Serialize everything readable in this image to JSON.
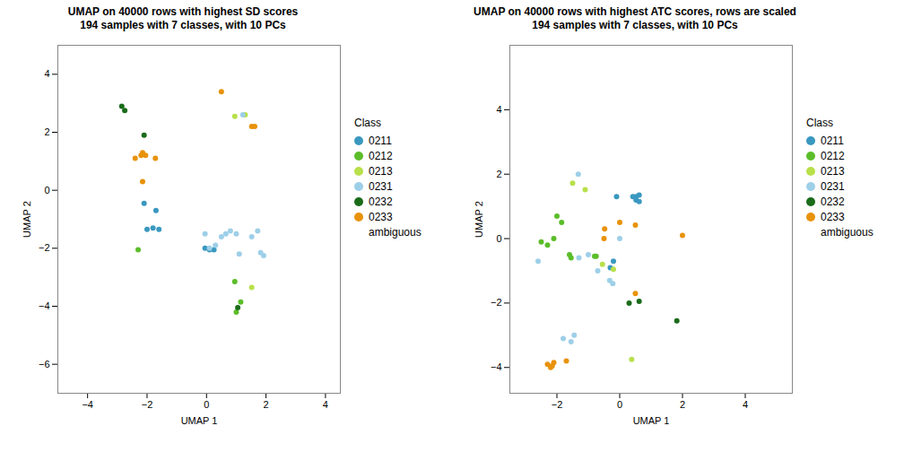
{
  "chart_data": [
    {
      "type": "scatter",
      "title": "UMAP on 40000 rows with highest SD scores\n194 samples with 7 classes, with 10 PCs",
      "xlabel": "UMAP 1",
      "ylabel": "UMAP 2",
      "xlim": [
        -5.0,
        4.5
      ],
      "ylim": [
        -7.0,
        5.0
      ],
      "xticks": [
        -4,
        -2,
        0,
        2,
        4
      ],
      "yticks": [
        -6,
        -4,
        -2,
        0,
        2,
        4
      ],
      "grid": false,
      "legend": "right",
      "legend_title": "Class",
      "series": [
        {
          "name": "0211",
          "color": "#3A98C0",
          "x": [
            -2.1,
            -2.0,
            -1.8,
            -1.7,
            -1.6,
            -0.05,
            0.1,
            0.25
          ],
          "y": [
            -0.45,
            -1.35,
            -1.3,
            -0.7,
            -1.35,
            -2.0,
            -2.05,
            -2.05
          ]
        },
        {
          "name": "0212",
          "color": "#5BBD2A",
          "x": [
            -2.3,
            1.0,
            1.15,
            0.95
          ],
          "y": [
            -2.05,
            -4.2,
            -3.85,
            -3.15
          ]
        },
        {
          "name": "0213",
          "color": "#B8E04A",
          "x": [
            0.95,
            1.3,
            1.52
          ],
          "y": [
            2.55,
            2.6,
            -3.35
          ]
        },
        {
          "name": "0231",
          "color": "#9ECFE8",
          "x": [
            -0.05,
            0.1,
            0.3,
            0.5,
            0.65,
            0.8,
            1.0,
            1.1,
            1.22,
            1.52,
            1.72,
            1.82,
            1.92
          ],
          "y": [
            -1.5,
            -2.0,
            -1.9,
            -1.6,
            -1.5,
            -1.4,
            -1.5,
            -2.2,
            2.6,
            -1.6,
            -1.4,
            -2.15,
            -2.25
          ]
        },
        {
          "name": "0232",
          "color": "#1A6B1A",
          "x": [
            -2.85,
            -2.75,
            -2.1,
            1.05
          ],
          "y": [
            2.9,
            2.75,
            1.9,
            -4.05
          ]
        },
        {
          "name": "0233",
          "color": "#E8920A",
          "x": [
            -2.4,
            -2.2,
            -2.15,
            -2.05,
            -2.15,
            -1.72,
            0.5,
            1.52,
            1.62
          ],
          "y": [
            1.1,
            1.2,
            1.3,
            1.2,
            0.3,
            1.1,
            3.4,
            2.2,
            2.2
          ]
        },
        {
          "name": "ambiguous",
          "x": [],
          "y": []
        }
      ]
    },
    {
      "type": "scatter",
      "title": "UMAP on 40000 rows with highest ATC scores, rows are scaled\n194 samples with 7 classes, with 10 PCs",
      "xlabel": "UMAP 1",
      "ylabel": "UMAP 2",
      "xlim": [
        -3.5,
        5.5
      ],
      "ylim": [
        -4.8,
        6.0
      ],
      "xticks": [
        -2,
        0,
        2,
        4
      ],
      "yticks": [
        -4,
        -2,
        0,
        2,
        4
      ],
      "grid": false,
      "legend": "right",
      "legend_title": "Class",
      "series": [
        {
          "name": "0211",
          "color": "#3A98C0",
          "x": [
            -0.1,
            0.42,
            0.52,
            0.62,
            0.52,
            0.62,
            -0.2,
            -0.3
          ],
          "y": [
            1.3,
            1.3,
            1.3,
            1.35,
            1.2,
            1.15,
            -0.7,
            -0.9
          ]
        },
        {
          "name": "0212",
          "color": "#5BBD2A",
          "x": [
            -2.5,
            -2.3,
            -2.1,
            -2.0,
            -1.85,
            -1.6,
            -1.55,
            -0.8,
            -0.75
          ],
          "y": [
            -0.1,
            -0.2,
            0.0,
            0.7,
            0.5,
            -0.5,
            -0.6,
            -0.55,
            -0.55
          ]
        },
        {
          "name": "0213",
          "color": "#B8E04A",
          "x": [
            -1.5,
            -1.1,
            -0.55,
            -0.2,
            0.38
          ],
          "y": [
            1.72,
            1.52,
            -0.8,
            -0.95,
            -3.75
          ]
        },
        {
          "name": "0231",
          "color": "#9ECFE8",
          "x": [
            -2.6,
            -1.8,
            -1.55,
            -1.45,
            -1.3,
            -1.0,
            -0.7,
            -0.32,
            -0.22,
            0.0,
            -1.32
          ],
          "y": [
            -0.7,
            -3.1,
            -3.2,
            -3.0,
            -0.6,
            -0.5,
            -1.0,
            -1.3,
            -1.4,
            0.0,
            2.0
          ]
        },
        {
          "name": "0232",
          "color": "#1A6B1A",
          "x": [
            0.3,
            0.62,
            1.82
          ],
          "y": [
            -2.0,
            -1.95,
            -2.55
          ]
        },
        {
          "name": "0233",
          "color": "#E8920A",
          "x": [
            -2.3,
            -2.2,
            -2.1,
            -2.15,
            -1.7,
            -0.5,
            -0.48,
            0.0,
            0.5,
            0.5,
            2.0
          ],
          "y": [
            -3.9,
            -4.0,
            -3.85,
            -3.95,
            -3.8,
            0.0,
            0.3,
            0.5,
            0.42,
            -1.7,
            0.1
          ]
        },
        {
          "name": "ambiguous",
          "x": [],
          "y": []
        }
      ]
    }
  ]
}
